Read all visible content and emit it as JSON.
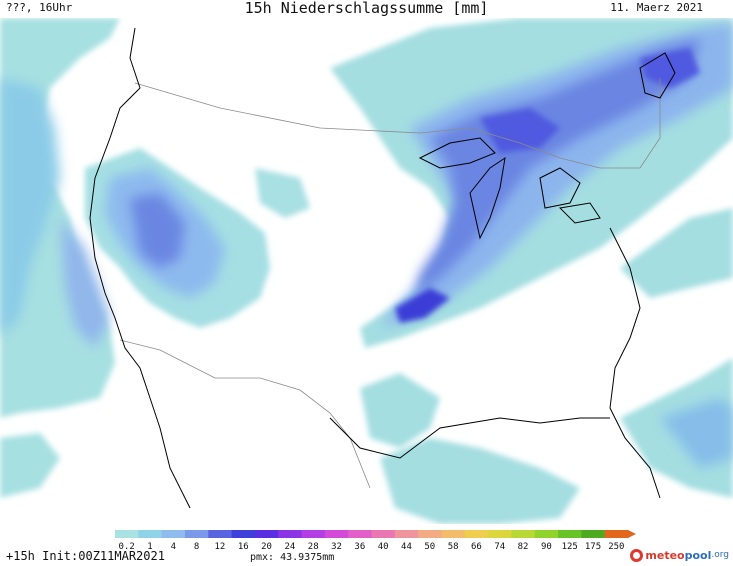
{
  "header": {
    "left_label": "???, 16Uhr",
    "title": "15h Niederschlagssumme [mm]",
    "date": "11. Maerz 2021"
  },
  "footer": {
    "init_label": "+15h Init:00Z11MAR2021",
    "pmx_label": "pmx: 43.9375mm"
  },
  "logo": {
    "part1": "meteo",
    "part2": "pool",
    "part3": ".org"
  },
  "colors": {
    "land": "#ffffff",
    "light_precip": "#9fdde0",
    "mid_precip": "#7fb6ea",
    "heavy_precip": "#4d6ddc",
    "intense_precip": "#3b39d6",
    "coastline": "#000000",
    "border": "#8a8a8a"
  },
  "legend": {
    "labels": [
      "0.2",
      "1",
      "4",
      "8",
      "12",
      "16",
      "20",
      "24",
      "28",
      "32",
      "36",
      "40",
      "44",
      "50",
      "58",
      "66",
      "74",
      "82",
      "90",
      "125",
      "175",
      "250"
    ],
    "colors": [
      "#a8e2e2",
      "#8fd4e6",
      "#8fbbef",
      "#7b98ea",
      "#5a63e0",
      "#3f3fd9",
      "#5a2fe3",
      "#8a34e6",
      "#b33fe4",
      "#d34ad9",
      "#e25ec8",
      "#ea77b1",
      "#ef949a",
      "#f2ab83",
      "#f3bc6a",
      "#efcd4f",
      "#dbd63c",
      "#b8d933",
      "#8fd32b",
      "#68c426",
      "#4eab1f",
      "#e3661d"
    ]
  }
}
